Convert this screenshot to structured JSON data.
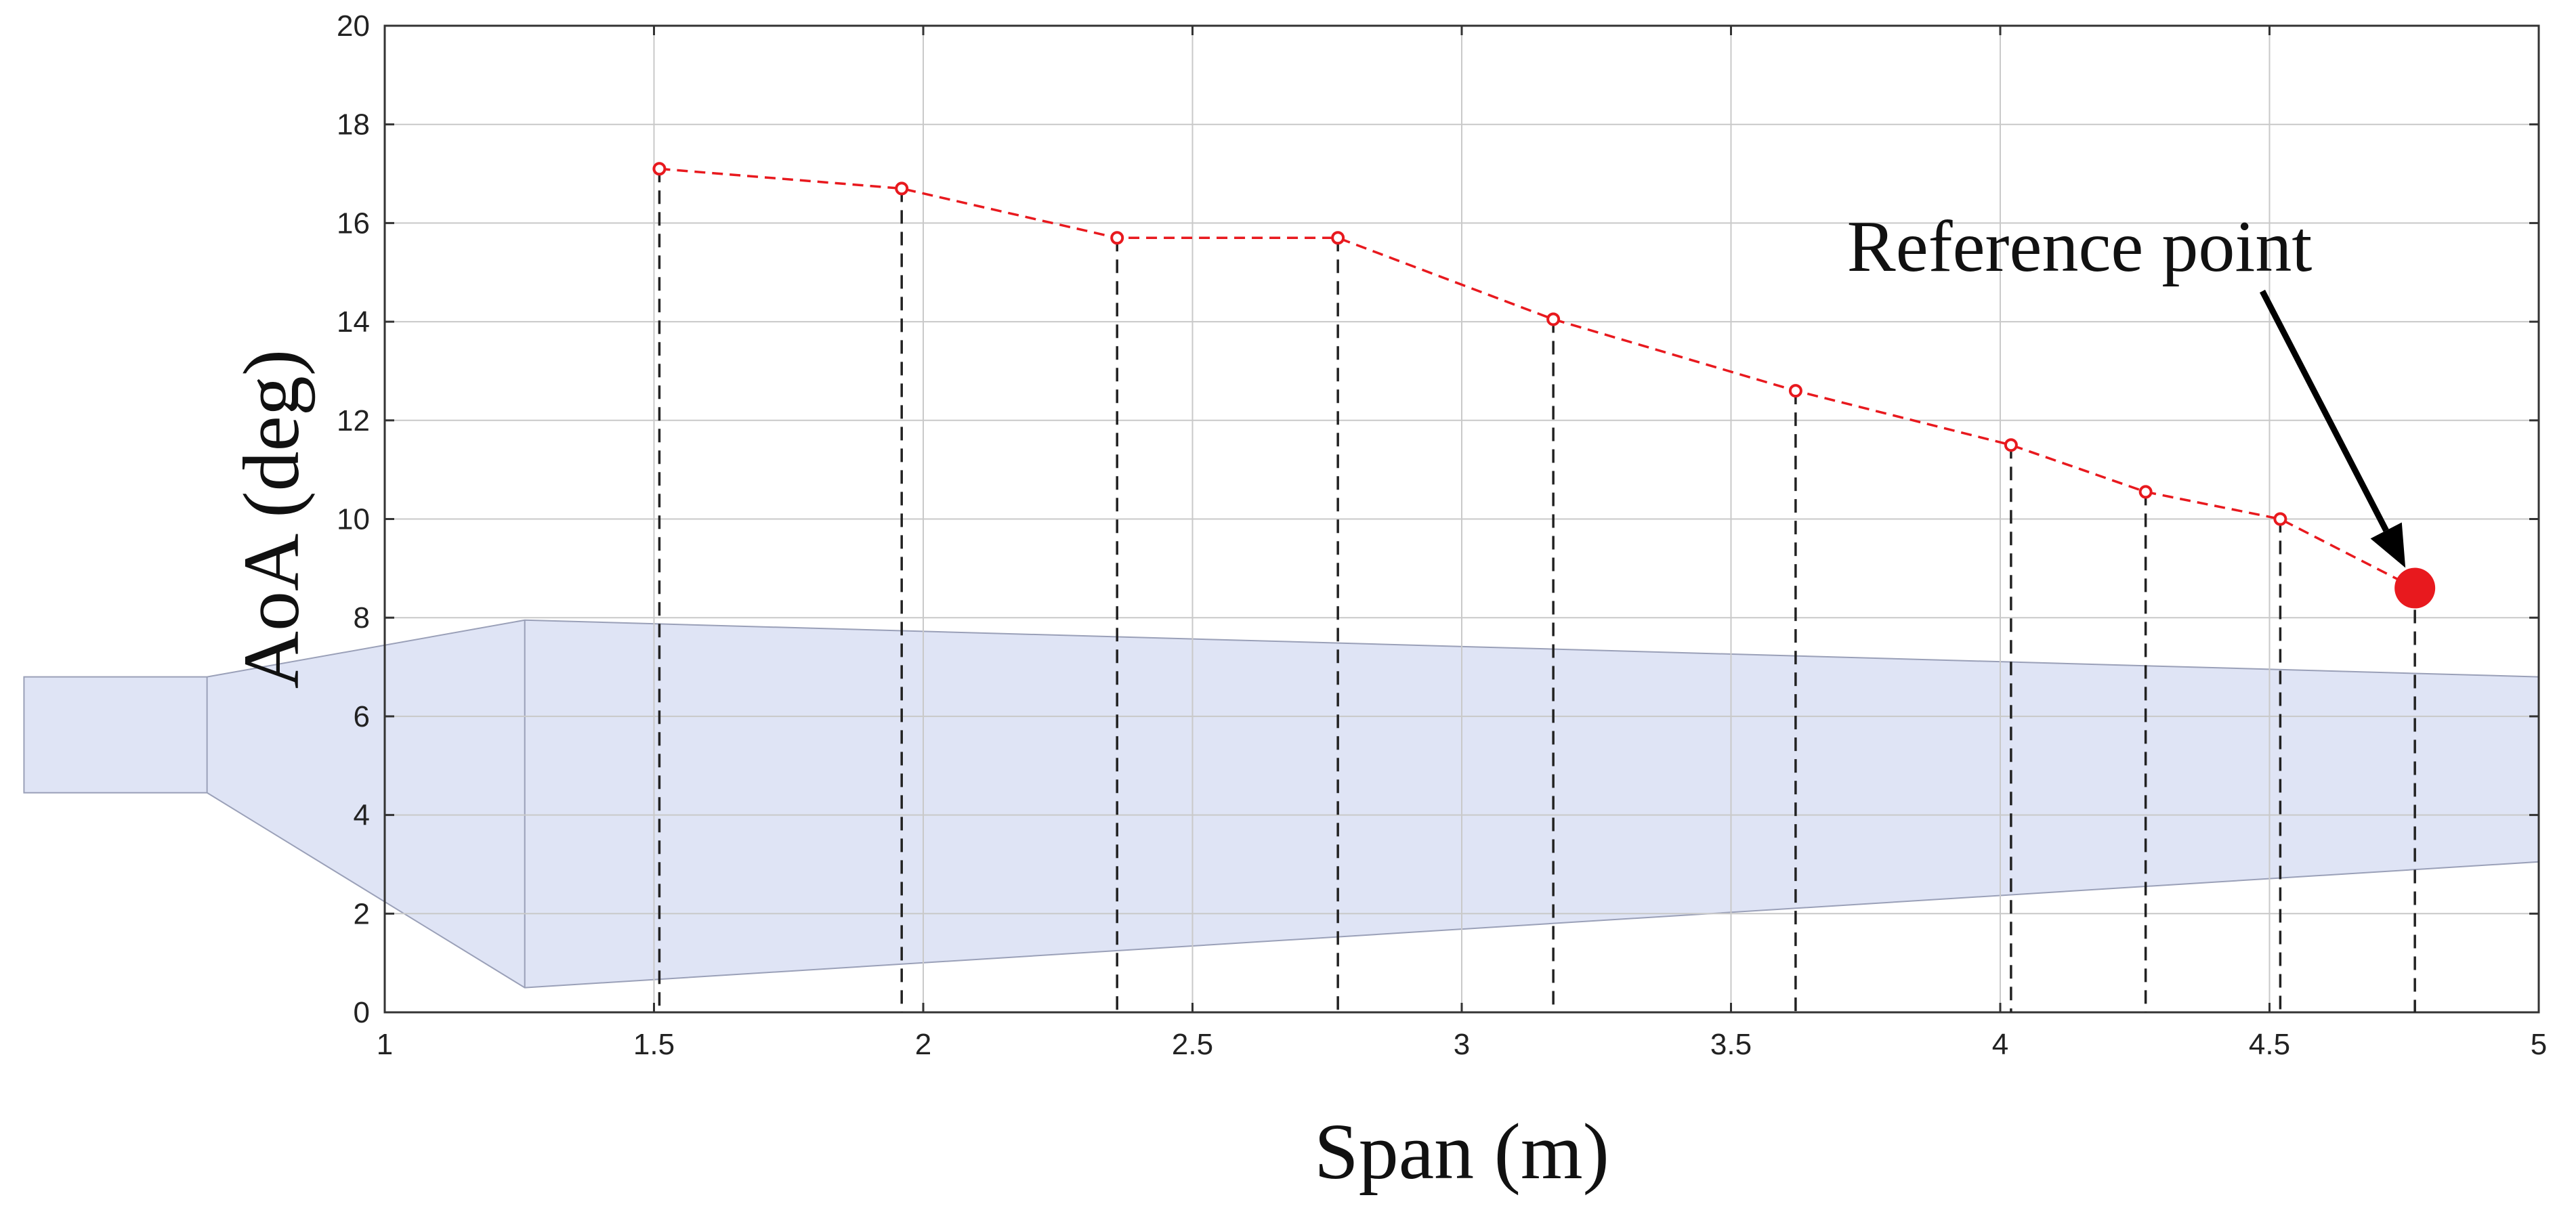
{
  "chart_data": {
    "type": "line",
    "xlabel": "Span (m)",
    "ylabel": "AoA (deg)",
    "xlim": [
      1,
      5
    ],
    "ylim": [
      0,
      20
    ],
    "x_ticks": [
      1,
      1.5,
      2,
      2.5,
      3,
      3.5,
      4,
      4.5,
      5
    ],
    "x_tick_labels": [
      "1",
      "1.5",
      "2",
      "2.5",
      "3",
      "3.5",
      "4",
      "4.5",
      "5"
    ],
    "y_ticks": [
      0,
      2,
      4,
      6,
      8,
      10,
      12,
      14,
      16,
      18,
      20
    ],
    "y_tick_labels": [
      "0",
      "2",
      "4",
      "6",
      "8",
      "10",
      "12",
      "14",
      "16",
      "18",
      "20"
    ],
    "grid": true,
    "series": [
      {
        "x": [
          1.51,
          1.96,
          2.36,
          2.77,
          3.17,
          3.62,
          4.02,
          4.27,
          4.52,
          4.77
        ],
        "y": [
          17.1,
          16.7,
          15.7,
          15.7,
          14.05,
          12.6,
          11.5,
          10.55,
          10.0,
          8.6
        ],
        "color": "#e8191e",
        "style": "dashed",
        "marker": "open-circle"
      }
    ],
    "reference_point": {
      "x": 4.77,
      "y": 8.6,
      "color": "#e8191e"
    },
    "annotations": [
      {
        "text": "Reference point",
        "arrow_to": {
          "x": 4.77,
          "y": 8.6
        }
      }
    ],
    "blade_outline": {
      "color": "#dfe4f5",
      "edge_color": "#9aa0b8",
      "upper": [
        [
          0.33,
          6.8
        ],
        [
          0.67,
          6.8
        ],
        [
          1.26,
          7.95
        ],
        [
          5.0,
          6.8
        ]
      ],
      "lower": [
        [
          0.33,
          4.45
        ],
        [
          0.67,
          4.45
        ],
        [
          1.26,
          0.5
        ],
        [
          5.0,
          3.05
        ]
      ],
      "root_divider_x": 0.67,
      "shoulder_divider_x": 1.26
    }
  }
}
